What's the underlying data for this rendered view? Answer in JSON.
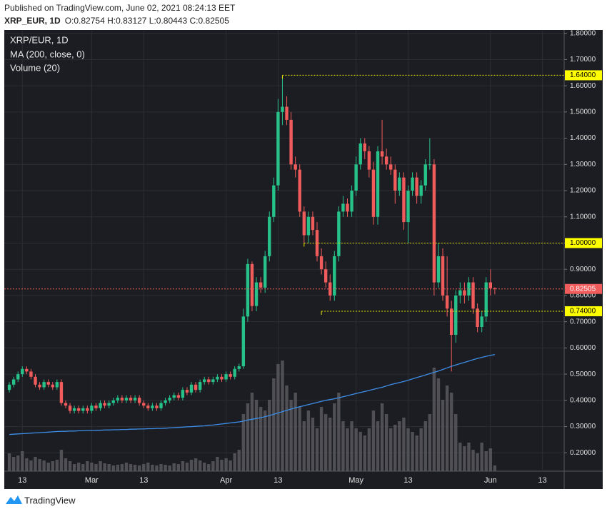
{
  "header": {
    "published": "Published on TradingView.com, June 02, 2021 08:24:13 EET",
    "symbol": "XRP_EUR, 1D",
    "ohlc_text": "O:0.82754 H:0.83127 L:0.80443 C:0.82505"
  },
  "footer": {
    "brand": "TradingView"
  },
  "chart_data": {
    "type": "candlestick",
    "symbol_label": "XRP/EUR, 1D",
    "ma_label": "MA (200, close, 0)",
    "volume_label": "Volume (20)",
    "up_color": "#26c28a",
    "down_color": "#f05b5b",
    "ma_color": "#3d8ee8",
    "volume_color": "#5c5d61",
    "grid": true,
    "x": [
      "Feb 10",
      "Feb 11",
      "Feb 12",
      "Feb 13",
      "Feb 14",
      "Feb 15",
      "Feb 16",
      "Feb 17",
      "Feb 18",
      "Feb 19",
      "Feb 20",
      "Feb 21",
      "Feb 22",
      "Feb 23",
      "Feb 24",
      "Feb 25",
      "Feb 26",
      "Feb 27",
      "Feb 28",
      "Mar 1",
      "Mar 2",
      "Mar 3",
      "Mar 4",
      "Mar 5",
      "Mar 6",
      "Mar 7",
      "Mar 8",
      "Mar 9",
      "Mar 10",
      "Mar 11",
      "Mar 12",
      "Mar 13",
      "Mar 14",
      "Mar 15",
      "Mar 16",
      "Mar 17",
      "Mar 18",
      "Mar 19",
      "Mar 20",
      "Mar 21",
      "Mar 22",
      "Mar 23",
      "Mar 24",
      "Mar 25",
      "Mar 26",
      "Mar 27",
      "Mar 28",
      "Mar 29",
      "Mar 30",
      "Mar 31",
      "Apr 1",
      "Apr 2",
      "Apr 3",
      "Apr 4",
      "Apr 5",
      "Apr 6",
      "Apr 7",
      "Apr 8",
      "Apr 9",
      "Apr 10",
      "Apr 11",
      "Apr 12",
      "Apr 13",
      "Apr 14",
      "Apr 15",
      "Apr 16",
      "Apr 17",
      "Apr 18",
      "Apr 19",
      "Apr 20",
      "Apr 21",
      "Apr 22",
      "Apr 23",
      "Apr 24",
      "Apr 25",
      "Apr 26",
      "Apr 27",
      "Apr 28",
      "Apr 29",
      "Apr 30",
      "May 1",
      "May 2",
      "May 3",
      "May 4",
      "May 5",
      "May 6",
      "May 7",
      "May 8",
      "May 9",
      "May 10",
      "May 11",
      "May 12",
      "May 13",
      "May 14",
      "May 15",
      "May 16",
      "May 17",
      "May 18",
      "May 19",
      "May 20",
      "May 21",
      "May 22",
      "May 23",
      "May 24",
      "May 25",
      "May 26",
      "May 27",
      "May 28",
      "May 29",
      "May 30",
      "May 31",
      "Jun 1",
      "Jun 2"
    ],
    "open": [
      0.44,
      0.46,
      0.48,
      0.5,
      0.52,
      0.51,
      0.49,
      0.46,
      0.45,
      0.47,
      0.46,
      0.45,
      0.47,
      0.39,
      0.38,
      0.36,
      0.37,
      0.36,
      0.37,
      0.36,
      0.38,
      0.37,
      0.39,
      0.38,
      0.39,
      0.4,
      0.41,
      0.4,
      0.41,
      0.4,
      0.41,
      0.39,
      0.38,
      0.37,
      0.38,
      0.37,
      0.39,
      0.4,
      0.41,
      0.42,
      0.41,
      0.44,
      0.43,
      0.46,
      0.44,
      0.47,
      0.48,
      0.47,
      0.48,
      0.49,
      0.48,
      0.5,
      0.49,
      0.52,
      0.53,
      0.72,
      0.92,
      0.76,
      0.85,
      0.83,
      0.95,
      1.1,
      1.22,
      1.5,
      1.52,
      1.47,
      1.3,
      1.28,
      1.12,
      1.03,
      1.1,
      1.05,
      0.95,
      0.9,
      0.85,
      0.8,
      0.95,
      1.12,
      1.15,
      1.12,
      1.2,
      1.3,
      1.38,
      1.35,
      1.28,
      1.1,
      1.35,
      1.33,
      1.3,
      1.28,
      1.2,
      1.25,
      1.08,
      1.2,
      1.25,
      1.18,
      1.22,
      1.3,
      1.3,
      0.85,
      0.95,
      0.8,
      0.75,
      0.65,
      0.8,
      0.82,
      0.8,
      0.85,
      0.75,
      0.68,
      0.72,
      0.85,
      0.82754
    ],
    "high": [
      0.47,
      0.49,
      0.51,
      0.53,
      0.53,
      0.52,
      0.5,
      0.47,
      0.48,
      0.48,
      0.47,
      0.48,
      0.48,
      0.4,
      0.39,
      0.38,
      0.38,
      0.38,
      0.38,
      0.39,
      0.39,
      0.4,
      0.4,
      0.4,
      0.41,
      0.42,
      0.42,
      0.42,
      0.42,
      0.42,
      0.42,
      0.4,
      0.39,
      0.39,
      0.39,
      0.4,
      0.41,
      0.42,
      0.43,
      0.43,
      0.45,
      0.45,
      0.47,
      0.47,
      0.48,
      0.49,
      0.49,
      0.49,
      0.5,
      0.5,
      0.51,
      0.51,
      0.53,
      0.54,
      0.75,
      0.94,
      0.93,
      0.87,
      0.87,
      0.97,
      1.12,
      1.25,
      1.55,
      1.64,
      1.56,
      1.5,
      1.33,
      1.3,
      1.14,
      1.12,
      1.12,
      1.08,
      0.98,
      0.93,
      0.88,
      0.97,
      1.14,
      1.18,
      1.17,
      1.22,
      1.33,
      1.4,
      1.4,
      1.37,
      1.31,
      1.37,
      1.47,
      1.36,
      1.33,
      1.3,
      1.27,
      1.27,
      1.22,
      1.27,
      1.27,
      1.24,
      1.32,
      1.4,
      1.32,
      1.0,
      0.98,
      0.95,
      0.78,
      0.82,
      0.85,
      0.85,
      0.87,
      0.87,
      0.77,
      0.74,
      0.87,
      0.9,
      0.83127
    ],
    "low": [
      0.43,
      0.45,
      0.47,
      0.49,
      0.5,
      0.48,
      0.45,
      0.44,
      0.44,
      0.45,
      0.44,
      0.44,
      0.38,
      0.37,
      0.35,
      0.35,
      0.35,
      0.35,
      0.35,
      0.35,
      0.36,
      0.36,
      0.37,
      0.37,
      0.38,
      0.39,
      0.39,
      0.39,
      0.39,
      0.39,
      0.38,
      0.37,
      0.36,
      0.36,
      0.36,
      0.36,
      0.38,
      0.39,
      0.4,
      0.4,
      0.4,
      0.42,
      0.42,
      0.43,
      0.43,
      0.46,
      0.46,
      0.46,
      0.47,
      0.47,
      0.47,
      0.48,
      0.48,
      0.51,
      0.52,
      0.7,
      0.74,
      0.74,
      0.81,
      0.81,
      0.93,
      1.08,
      1.2,
      1.45,
      1.45,
      1.28,
      1.25,
      1.1,
      1.0,
      1.0,
      1.03,
      0.93,
      0.88,
      0.83,
      0.78,
      0.78,
      0.93,
      1.1,
      1.1,
      1.1,
      1.18,
      1.28,
      1.32,
      1.25,
      1.07,
      1.07,
      1.3,
      1.28,
      1.26,
      1.15,
      1.18,
      1.05,
      1.0,
      1.18,
      1.15,
      1.15,
      1.2,
      1.28,
      0.8,
      0.83,
      0.78,
      0.72,
      0.51,
      0.62,
      0.77,
      0.77,
      0.78,
      0.73,
      0.66,
      0.66,
      0.7,
      0.8,
      0.80443
    ],
    "close": [
      0.46,
      0.48,
      0.5,
      0.52,
      0.51,
      0.49,
      0.46,
      0.45,
      0.47,
      0.46,
      0.45,
      0.47,
      0.39,
      0.38,
      0.36,
      0.37,
      0.36,
      0.37,
      0.36,
      0.38,
      0.37,
      0.39,
      0.38,
      0.39,
      0.4,
      0.41,
      0.4,
      0.41,
      0.4,
      0.41,
      0.39,
      0.38,
      0.37,
      0.38,
      0.37,
      0.39,
      0.4,
      0.41,
      0.42,
      0.41,
      0.44,
      0.43,
      0.46,
      0.44,
      0.47,
      0.48,
      0.47,
      0.48,
      0.49,
      0.48,
      0.5,
      0.49,
      0.52,
      0.53,
      0.72,
      0.92,
      0.76,
      0.85,
      0.83,
      0.95,
      1.1,
      1.22,
      1.5,
      1.52,
      1.47,
      1.3,
      1.28,
      1.12,
      1.03,
      1.1,
      1.05,
      0.95,
      0.9,
      0.85,
      0.8,
      0.95,
      1.12,
      1.15,
      1.12,
      1.2,
      1.3,
      1.38,
      1.35,
      1.28,
      1.1,
      1.35,
      1.33,
      1.3,
      1.28,
      1.2,
      1.25,
      1.08,
      1.2,
      1.25,
      1.18,
      1.22,
      1.3,
      1.3,
      0.85,
      0.95,
      0.8,
      0.75,
      0.65,
      0.8,
      0.82,
      0.8,
      0.85,
      0.75,
      0.68,
      0.72,
      0.85,
      0.82754,
      0.82505
    ],
    "volume": [
      25,
      20,
      22,
      28,
      18,
      15,
      20,
      17,
      15,
      12,
      14,
      16,
      30,
      18,
      14,
      10,
      12,
      10,
      14,
      12,
      10,
      14,
      11,
      10,
      8,
      9,
      10,
      12,
      10,
      9,
      8,
      10,
      12,
      9,
      8,
      10,
      9,
      8,
      11,
      10,
      14,
      12,
      16,
      18,
      15,
      12,
      10,
      14,
      20,
      16,
      18,
      15,
      25,
      30,
      80,
      95,
      110,
      100,
      90,
      85,
      100,
      130,
      150,
      155,
      120,
      100,
      110,
      90,
      70,
      85,
      75,
      60,
      90,
      80,
      75,
      95,
      110,
      70,
      60,
      70,
      60,
      55,
      50,
      60,
      85,
      70,
      95,
      80,
      60,
      65,
      70,
      75,
      60,
      55,
      50,
      60,
      70,
      80,
      145,
      130,
      100,
      120,
      110,
      80,
      40,
      35,
      40,
      30,
      25,
      40,
      28,
      32,
      8
    ],
    "ma": [
      0.27,
      0.271,
      0.272,
      0.273,
      0.274,
      0.275,
      0.276,
      0.277,
      0.278,
      0.279,
      0.28,
      0.281,
      0.282,
      0.282,
      0.283,
      0.283,
      0.284,
      0.284,
      0.285,
      0.285,
      0.286,
      0.286,
      0.287,
      0.287,
      0.288,
      0.288,
      0.289,
      0.289,
      0.29,
      0.29,
      0.291,
      0.291,
      0.292,
      0.292,
      0.293,
      0.293,
      0.294,
      0.295,
      0.296,
      0.297,
      0.298,
      0.299,
      0.3,
      0.301,
      0.302,
      0.303,
      0.305,
      0.306,
      0.308,
      0.31,
      0.312,
      0.314,
      0.316,
      0.318,
      0.321,
      0.325,
      0.328,
      0.331,
      0.334,
      0.338,
      0.342,
      0.347,
      0.352,
      0.357,
      0.362,
      0.367,
      0.372,
      0.376,
      0.38,
      0.384,
      0.388,
      0.392,
      0.396,
      0.4,
      0.403,
      0.406,
      0.41,
      0.414,
      0.418,
      0.422,
      0.426,
      0.43,
      0.434,
      0.438,
      0.442,
      0.446,
      0.45,
      0.455,
      0.46,
      0.464,
      0.468,
      0.472,
      0.477,
      0.482,
      0.487,
      0.492,
      0.497,
      0.502,
      0.507,
      0.512,
      0.518,
      0.524,
      0.53,
      0.535,
      0.54,
      0.545,
      0.55,
      0.555,
      0.56,
      0.564,
      0.568,
      0.572,
      0.575
    ],
    "xlim": [
      "Feb 9",
      "Jun 18"
    ],
    "xticks": [
      {
        "value": "Feb 13",
        "label": "13"
      },
      {
        "value": "Mar 1",
        "label": "Mar"
      },
      {
        "value": "Mar 13",
        "label": "13"
      },
      {
        "value": "Apr 1",
        "label": "Apr"
      },
      {
        "value": "Apr 13",
        "label": "13"
      },
      {
        "value": "May 1",
        "label": "May"
      },
      {
        "value": "May 13",
        "label": "13"
      },
      {
        "value": "Jun 1",
        "label": "Jun"
      },
      {
        "value": "Jun 13",
        "label": "13"
      }
    ],
    "ylim": [
      0.13,
      1.81
    ],
    "yticks": [
      {
        "value": 0.2,
        "label": "0.20000"
      },
      {
        "value": 0.3,
        "label": "0.30000"
      },
      {
        "value": 0.4,
        "label": "0.40000"
      },
      {
        "value": 0.5,
        "label": "0.50000"
      },
      {
        "value": 0.6,
        "label": "0.60000"
      },
      {
        "value": 0.7,
        "label": "0.70000"
      },
      {
        "value": 0.8,
        "label": "0.80000"
      },
      {
        "value": 0.9,
        "label": "0.90000"
      },
      {
        "value": 1.0,
        "label": "1.00000"
      },
      {
        "value": 1.1,
        "label": "1.10000"
      },
      {
        "value": 1.2,
        "label": "1.20000"
      },
      {
        "value": 1.3,
        "label": "1.30000"
      },
      {
        "value": 1.4,
        "label": "1.40000"
      },
      {
        "value": 1.5,
        "label": "1.50000"
      },
      {
        "value": 1.6,
        "label": "1.60000"
      },
      {
        "value": 1.7,
        "label": "1.70000"
      },
      {
        "value": 1.8,
        "label": "1.80000"
      }
    ],
    "levels": [
      {
        "value": 1.64,
        "label": "1.64000",
        "from": "Apr 14",
        "color": "#e6e600"
      },
      {
        "value": 1.0,
        "label": "1.00000",
        "from": "Apr 19",
        "color": "#e6e600"
      },
      {
        "value": 0.74,
        "label": "0.74000",
        "from": "Apr 23",
        "color": "#e6e600"
      }
    ],
    "last_price": {
      "value": 0.82505,
      "label": "0.82505",
      "color": "#f05b5b"
    }
  }
}
